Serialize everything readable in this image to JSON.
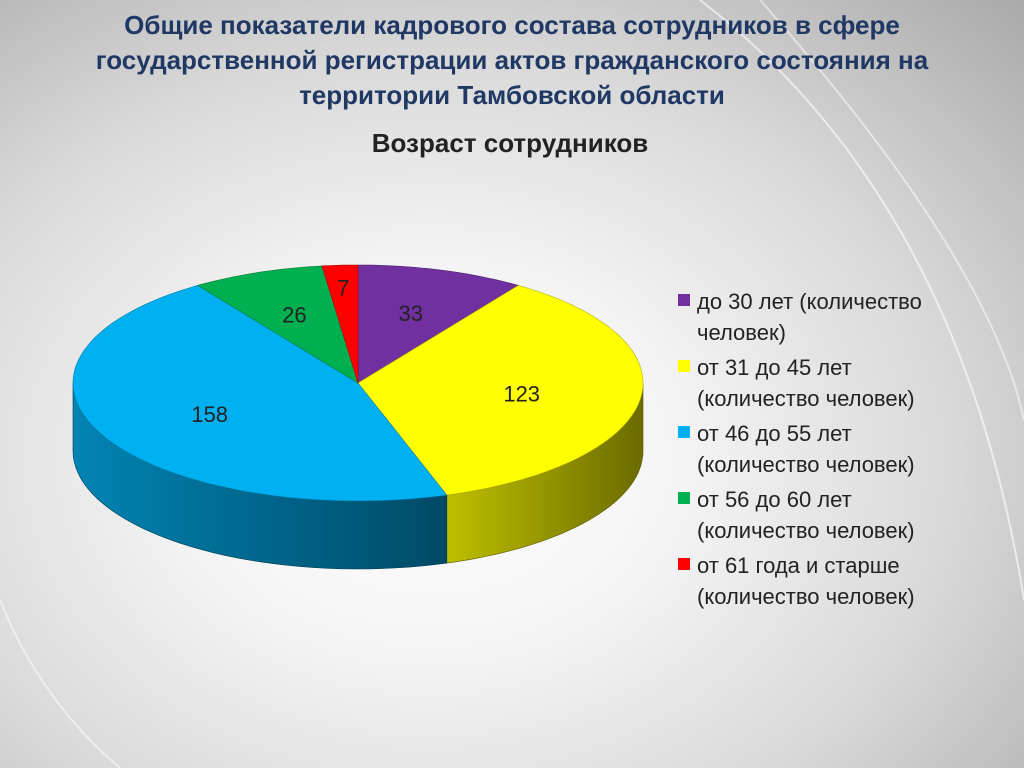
{
  "slide": {
    "title": "Общие показатели кадрового состава сотрудников в сфере государственной регистрации актов гражданского состояния на территории Тамбовской области"
  },
  "chart_data": {
    "type": "pie",
    "title": "Возраст сотрудников",
    "legend_position": "right",
    "three_d": true,
    "categories": [
      "до 30 лет (количество человек)",
      "от 31 до 45 лет (количество человек)",
      "от 46 до 55 лет (количество человек)",
      "от 56 до 60 лет (количество человек)",
      "от 61 года и старше (количество человек)"
    ],
    "values": [
      33,
      123,
      158,
      26,
      7
    ],
    "colors": [
      "#7030a0",
      "#ffff00",
      "#00b0f0",
      "#00b050",
      "#ff0000"
    ]
  }
}
